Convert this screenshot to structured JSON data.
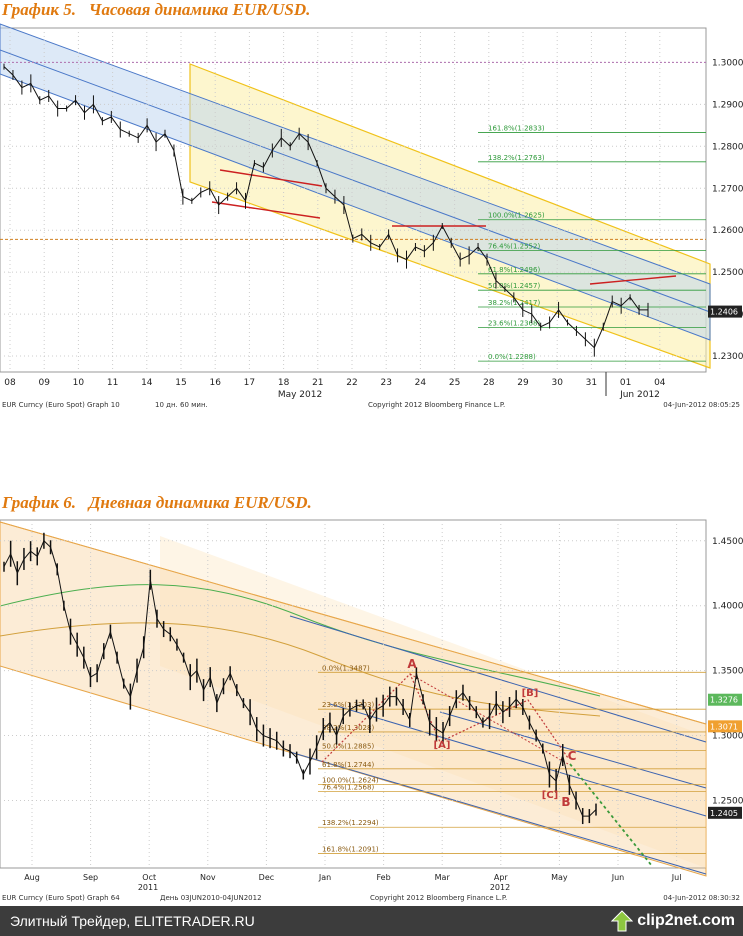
{
  "footer": {
    "site_text": "Элитный Трейдер, ELITETRADER.RU",
    "logo_text": "clip2net.com"
  },
  "chart_data": [
    {
      "type": "line",
      "title": "График 5.   Часовая динамика EUR/USD.",
      "x_tick_labels": [
        "08",
        "09",
        "10",
        "11",
        "14",
        "15",
        "16",
        "17",
        "18",
        "21",
        "22",
        "23",
        "24",
        "25",
        "28",
        "29",
        "30",
        "31",
        "01",
        "04"
      ],
      "x_period_labels": [
        "May 2012",
        "Jun 2012"
      ],
      "y_tick_labels": [
        "1.3000",
        "1.2900",
        "1.2800",
        "1.2700",
        "1.2600",
        "1.2500",
        "1.2400",
        "1.2300"
      ],
      "ylim": [
        1.2262,
        1.3082
      ],
      "price_label": "1.2406",
      "series": [
        {
          "values": [
            1.299,
            1.297,
            1.294,
            1.295,
            1.291,
            1.292,
            1.289,
            1.289,
            1.291,
            1.288,
            1.29,
            1.286,
            1.287,
            1.284,
            1.283,
            1.282,
            1.285,
            1.281,
            1.283,
            1.279,
            1.268,
            1.267,
            1.269,
            1.27,
            1.266,
            1.268,
            1.27,
            1.267,
            1.276,
            1.275,
            1.279,
            1.282,
            1.28,
            1.283,
            1.281,
            1.276,
            1.27,
            1.268,
            1.266,
            1.258,
            1.259,
            1.257,
            1.256,
            1.259,
            1.254,
            1.253,
            1.256,
            1.255,
            1.257,
            1.261,
            1.257,
            1.253,
            1.254,
            1.256,
            1.253,
            1.248,
            1.246,
            1.244,
            1.241,
            1.24,
            1.237,
            1.238,
            1.241,
            1.238,
            1.236,
            1.234,
            1.232,
            1.237,
            1.243,
            1.242,
            1.244,
            1.241,
            1.241
          ]
        }
      ],
      "fibonacci_levels": [
        "161.8%(1.2833)",
        "138.2%(1.2763)",
        "100.0%(1.2625)",
        "76.4%(1.2552)",
        "61.8%(1.2496)",
        "50.0%(1.2457)",
        "38.2%(1.2417)",
        "23.6%(1.2368)",
        "0.0%(1.2288)"
      ],
      "footer_left": "EUR Curncy (Euro Spot) Graph 10",
      "footer_mid": "10 дн. 60 мин.",
      "footer_copyright": "Copyright 2012 Bloomberg Finance L.P.",
      "footer_right": "04-Jun-2012 08:05:25",
      "grid": true
    },
    {
      "type": "line",
      "title": "График 6.   Дневная динамика EUR/USD.",
      "x_tick_labels": [
        "Aug",
        "Sep",
        "Oct",
        "Nov",
        "Dec",
        "Jan",
        "Feb",
        "Mar",
        "Apr",
        "May",
        "Jun",
        "Jul"
      ],
      "x_year_labels": [
        "2011",
        "2012"
      ],
      "y_tick_labels": [
        "1.4500",
        "1.4000",
        "1.3500",
        "1.3000",
        "1.2500"
      ],
      "ylim": [
        1.198,
        1.466
      ],
      "price_labels": [
        "1.3276",
        "1.3071",
        "1.2405"
      ],
      "series": [
        {
          "values": [
            1.43,
            1.44,
            1.425,
            1.436,
            1.442,
            1.438,
            1.45,
            1.445,
            1.428,
            1.4,
            1.38,
            1.37,
            1.36,
            1.345,
            1.348,
            1.365,
            1.38,
            1.36,
            1.34,
            1.33,
            1.35,
            1.368,
            1.42,
            1.39,
            1.382,
            1.378,
            1.37,
            1.36,
            1.345,
            1.35,
            1.335,
            1.345,
            1.325,
            1.338,
            1.348,
            1.335,
            1.325,
            1.318,
            1.305,
            1.3,
            1.298,
            1.296,
            1.29,
            1.288,
            1.283,
            1.27,
            1.28,
            1.291,
            1.305,
            1.31,
            1.3,
            1.315,
            1.32,
            1.323,
            1.324,
            1.312,
            1.32,
            1.323,
            1.33,
            1.33,
            1.322,
            1.312,
            1.348,
            1.328,
            1.31,
            1.305,
            1.302,
            1.315,
            1.328,
            1.333,
            1.325,
            1.318,
            1.31,
            1.315,
            1.325,
            1.318,
            1.322,
            1.328,
            1.322,
            1.31,
            1.3,
            1.29,
            1.27,
            1.265,
            1.285,
            1.262,
            1.25,
            1.238,
            1.238,
            1.243
          ]
        }
      ],
      "fibonacci_levels": [
        "0.0%(1.3487)",
        "23.6%(1.3203)",
        "38.2%(1.3028)",
        "50.0%(1.2885)",
        "61.8%(1.2744)",
        "76.4%(1.2568)",
        "100.0%(1.2624)",
        "138.2%(1.2294)",
        "161.8%(1.2091)"
      ],
      "wave_labels": [
        "A",
        "[A]",
        "[B]",
        "C",
        "[C]",
        "B"
      ],
      "footer_left": "EUR Curncy (Euro Spot) Graph 64",
      "footer_mid": "День 03JUN2010-04JUN2012",
      "footer_copyright": "Copyright 2012 Bloomberg Finance L.P.",
      "footer_right": "04-Jun-2012 08:30:32",
      "grid": true
    }
  ]
}
